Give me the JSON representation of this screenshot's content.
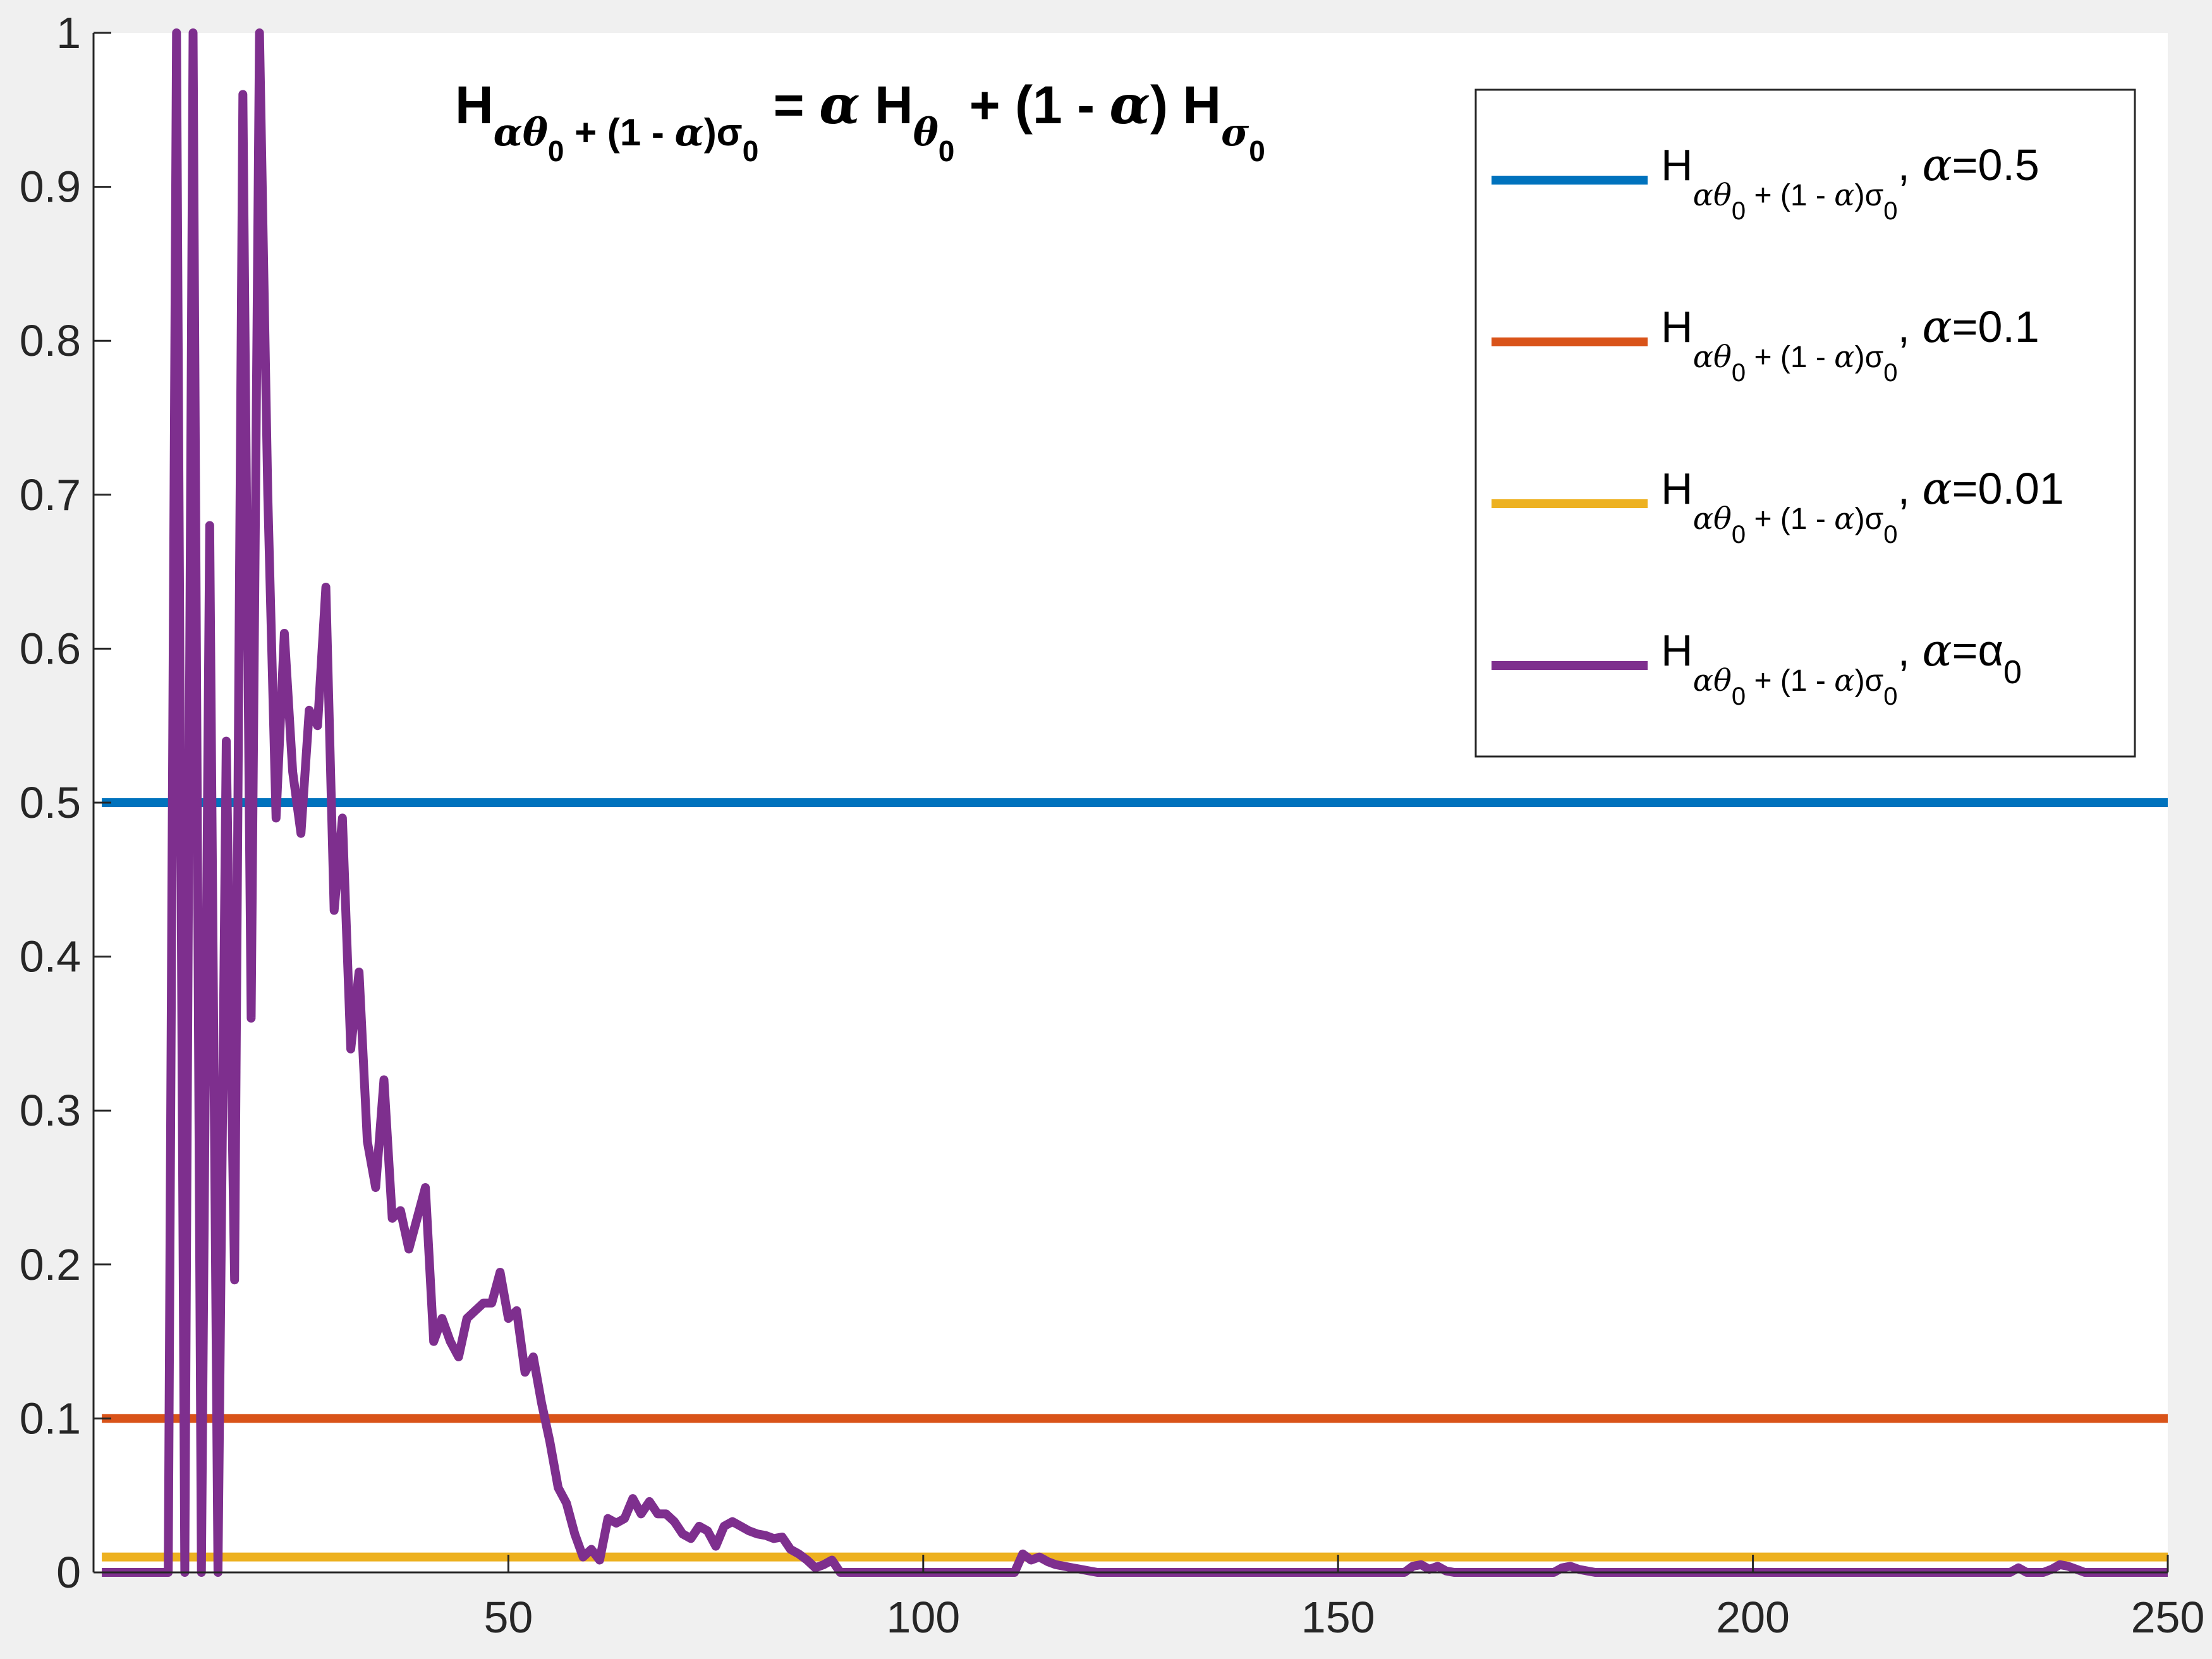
{
  "chart_data": {
    "type": "line",
    "title": {
      "H": "H",
      "lhs_sub_a": "αθ",
      "lhs_sub_0a": "0",
      "lhs_sub_mid": " + (1 - ",
      "lhs_sub_alpha": "α",
      "lhs_sub_close": ")σ",
      "lhs_sub_0b": "0",
      "eq": " = ",
      "alpha1": "α",
      "H2": " H",
      "theta": "θ",
      "theta0": "0",
      "plus": " + (1 - ",
      "alpha2": "α",
      "close": ") H",
      "sigma": "σ",
      "sigma0": "0"
    },
    "xlabel": "",
    "ylabel": "",
    "xlim": [
      0,
      250
    ],
    "ylim": [
      0,
      1
    ],
    "xticks": [
      50,
      100,
      150,
      200,
      250
    ],
    "xtick_labels": [
      "50",
      "100",
      "150",
      "200",
      "250"
    ],
    "yticks": [
      0,
      0.1,
      0.2,
      0.3,
      0.4,
      0.5,
      0.6,
      0.7,
      0.8,
      0.9,
      1
    ],
    "ytick_labels": [
      "0",
      "0.1",
      "0.2",
      "0.3",
      "0.4",
      "0.5",
      "0.6",
      "0.7",
      "0.8",
      "0.9",
      "1"
    ],
    "grid": false,
    "legend_position": "top-right",
    "series": [
      {
        "name": "H_{αθ0 + (1 - α)σ0}, α=0.5",
        "legend": {
          "H": "H",
          "sub_a": "αθ",
          "sub_0a": "0",
          "sub_mid": " + (1 - ",
          "sub_alpha": "α",
          "sub_close": ")σ",
          "sub_0b": "0",
          "comma": ", ",
          "alpha": "α",
          "eq": "=0.5"
        },
        "color": "#0072bd",
        "x": [
          1,
          250
        ],
        "y": [
          0.5,
          0.5
        ]
      },
      {
        "name": "H_{αθ0 + (1 - α)σ0}, α=0.1",
        "legend": {
          "H": "H",
          "sub_a": "αθ",
          "sub_0a": "0",
          "sub_mid": " + (1 - ",
          "sub_alpha": "α",
          "sub_close": ")σ",
          "sub_0b": "0",
          "comma": ", ",
          "alpha": "α",
          "eq": "=0.1"
        },
        "color": "#d95319",
        "x": [
          1,
          250
        ],
        "y": [
          0.1,
          0.1
        ]
      },
      {
        "name": "H_{αθ0 + (1 - α)σ0}, α=0.01",
        "legend": {
          "H": "H",
          "sub_a": "αθ",
          "sub_0a": "0",
          "sub_mid": " + (1 - ",
          "sub_alpha": "α",
          "sub_close": ")σ",
          "sub_0b": "0",
          "comma": ", ",
          "alpha": "α",
          "eq": "=0.01"
        },
        "color": "#edb120",
        "x": [
          1,
          250
        ],
        "y": [
          0.01,
          0.01
        ]
      },
      {
        "name": "H_{αθ0 + (1 - α)σ0}, α=α0",
        "legend": {
          "H": "H",
          "sub_a": "αθ",
          "sub_0a": "0",
          "sub_mid": " + (1 - ",
          "sub_alpha": "α",
          "sub_close": ")σ",
          "sub_0b": "0",
          "comma": ", ",
          "alpha": "α",
          "eq": "=α",
          "eq_sub": "0"
        },
        "color": "#7e2f8e",
        "x": [
          1,
          9,
          10,
          11,
          12,
          13,
          14,
          15,
          16,
          17,
          18,
          19,
          20,
          21,
          22,
          23,
          24,
          25,
          26,
          27,
          28,
          29,
          30,
          31,
          32,
          33,
          34,
          35,
          36,
          37,
          38,
          39,
          40,
          41,
          42,
          43,
          44,
          45,
          46,
          47,
          48,
          49,
          50,
          51,
          52,
          53,
          54,
          55,
          56,
          57,
          58,
          59,
          60,
          61,
          62,
          63,
          64,
          65,
          66,
          67,
          68,
          69,
          70,
          71,
          72,
          73,
          74,
          75,
          76,
          77,
          78,
          79,
          80,
          81,
          82,
          83,
          84,
          85,
          86,
          87,
          88,
          89,
          90,
          91,
          92,
          110,
          111,
          112,
          113,
          114,
          115,
          116,
          117,
          118,
          119,
          120,
          121,
          122,
          123,
          157,
          158,
          159,
          160,
          161,
          162,
          163,
          164,
          175,
          176,
          177,
          178,
          179,
          180,
          181,
          182,
          230,
          231,
          232,
          233,
          234,
          235,
          236,
          237,
          238,
          239,
          240,
          241,
          242,
          250
        ],
        "y": [
          0,
          0,
          1,
          0,
          1,
          0,
          0.68,
          0,
          0.54,
          0.19,
          0.96,
          0.36,
          1,
          0.7,
          0.49,
          0.61,
          0.52,
          0.48,
          0.56,
          0.55,
          0.64,
          0.43,
          0.49,
          0.34,
          0.39,
          0.28,
          0.25,
          0.32,
          0.23,
          0.235,
          0.21,
          0.23,
          0.25,
          0.15,
          0.165,
          0.15,
          0.14,
          0.165,
          0.17,
          0.175,
          0.175,
          0.195,
          0.165,
          0.17,
          0.13,
          0.14,
          0.11,
          0.085,
          0.055,
          0.045,
          0.025,
          0.01,
          0.015,
          0.008,
          0.035,
          0.032,
          0.035,
          0.048,
          0.038,
          0.046,
          0.038,
          0.038,
          0.033,
          0.025,
          0.022,
          0.03,
          0.027,
          0.017,
          0.03,
          0.033,
          0.03,
          0.027,
          0.025,
          0.024,
          0.022,
          0.023,
          0.015,
          0.012,
          0.008,
          0.003,
          0.005,
          0.008,
          0.0,
          0.0,
          0.0,
          0.0,
          0.0,
          0.012,
          0.008,
          0.01,
          0.007,
          0.005,
          0.004,
          0.003,
          0.002,
          0.001,
          0.0,
          0.0,
          0.0,
          0.0,
          0.0,
          0.004,
          0.005,
          0.002,
          0.004,
          0.001,
          0.0,
          0.0,
          0.0,
          0.003,
          0.004,
          0.002,
          0.001,
          0.0,
          0.0,
          0.0,
          0.0,
          0.003,
          0.0,
          0.0,
          0.0,
          0.002,
          0.005,
          0.004,
          0.002,
          0.0,
          0.0,
          0.0,
          0.0
        ]
      }
    ]
  }
}
